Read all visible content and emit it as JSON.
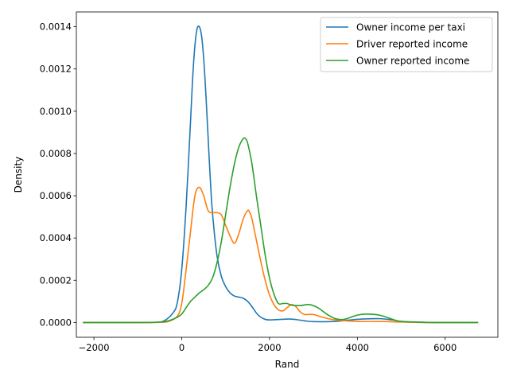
{
  "chart_data": {
    "type": "line",
    "title": "",
    "xlabel": "Rand",
    "ylabel": "Density",
    "xlim": [
      -2400,
      7200
    ],
    "ylim": [
      -7e-05,
      0.00147
    ],
    "xticks": [
      -2000,
      0,
      2000,
      4000,
      6000
    ],
    "xtick_labels": [
      "−2000",
      "0",
      "2000",
      "4000",
      "6000"
    ],
    "yticks": [
      0,
      0.0002,
      0.0004,
      0.0006,
      0.0008,
      0.001,
      0.0012,
      0.0014
    ],
    "ytick_labels": [
      "0.0000",
      "0.0002",
      "0.0004",
      "0.0006",
      "0.0008",
      "0.0010",
      "0.0012",
      "0.0014"
    ],
    "grid": false,
    "legend_position": "top-right",
    "series": [
      {
        "name": "Owner income per taxi",
        "color": "#1f77b4",
        "x": [
          -2250,
          -1000,
          -600,
          -400,
          -200,
          -100,
          0,
          100,
          200,
          250,
          300,
          350,
          400,
          450,
          500,
          550,
          600,
          650,
          700,
          800,
          900,
          1000,
          1100,
          1200,
          1300,
          1400,
          1500,
          1600,
          1700,
          1800,
          1900,
          2000,
          2200,
          2500,
          2800,
          3000,
          3500,
          4000,
          4500,
          4800,
          5000,
          5500,
          6000,
          6750
        ],
        "y": [
          0,
          0,
          1e-06,
          8e-06,
          4.5e-05,
          9.5e-05,
          0.00025,
          0.00055,
          0.00095,
          0.00116,
          0.00131,
          0.00139,
          0.0014,
          0.00136,
          0.00125,
          0.00108,
          0.00088,
          0.00068,
          0.00052,
          0.00032,
          0.00022,
          0.00017,
          0.00014,
          0.000125,
          0.00012,
          0.000115,
          0.0001,
          7.5e-05,
          4.5e-05,
          2.5e-05,
          1.5e-05,
          1.2e-05,
          1.4e-05,
          1.6e-05,
          8e-06,
          4e-06,
          5e-06,
          1.5e-05,
          1.8e-05,
          1.2e-05,
          5e-06,
          1e-06,
          0,
          0
        ]
      },
      {
        "name": "Driver reported income",
        "color": "#ff7f0e",
        "x": [
          -2250,
          -1000,
          -500,
          -300,
          -100,
          0,
          100,
          200,
          300,
          400,
          500,
          600,
          700,
          800,
          900,
          1000,
          1100,
          1200,
          1300,
          1400,
          1500,
          1550,
          1600,
          1700,
          1800,
          1900,
          2000,
          2100,
          2200,
          2300,
          2400,
          2500,
          2600,
          2700,
          2800,
          3000,
          3200,
          3500,
          4000,
          4500,
          5000,
          5500,
          6000,
          6750
        ],
        "y": [
          0,
          0,
          1e-06,
          5e-06,
          3e-05,
          9e-05,
          0.00025,
          0.00043,
          0.0006,
          0.00064,
          0.0006,
          0.00053,
          0.00052,
          0.00052,
          0.00051,
          0.00046,
          0.00041,
          0.000375,
          0.00042,
          0.00049,
          0.00053,
          0.00052,
          0.00049,
          0.00039,
          0.00029,
          0.0002,
          0.00013,
          8.5e-05,
          6e-05,
          5.5e-05,
          7e-05,
          8.5e-05,
          7.5e-05,
          5e-05,
          3.8e-05,
          3.8e-05,
          2.5e-05,
          1.2e-05,
          5e-06,
          5e-06,
          2e-06,
          0,
          0,
          0
        ]
      },
      {
        "name": "Owner reported income",
        "color": "#2ca02c",
        "x": [
          -2250,
          -1000,
          -500,
          -300,
          -100,
          0,
          100,
          200,
          300,
          400,
          500,
          600,
          700,
          800,
          900,
          1000,
          1100,
          1200,
          1300,
          1400,
          1450,
          1500,
          1600,
          1700,
          1800,
          1900,
          2000,
          2100,
          2200,
          2300,
          2400,
          2500,
          2700,
          2900,
          3100,
          3300,
          3500,
          3700,
          4000,
          4200,
          4500,
          4800,
          5000,
          5500,
          6000,
          6750
        ],
        "y": [
          0,
          0,
          2e-06,
          8e-06,
          2.5e-05,
          4e-05,
          7e-05,
          0.0001,
          0.00012,
          0.00014,
          0.000155,
          0.000175,
          0.00021,
          0.00028,
          0.00038,
          0.00051,
          0.00064,
          0.00075,
          0.00083,
          0.00087,
          0.00087,
          0.00085,
          0.00075,
          0.0006,
          0.00046,
          0.00032,
          0.00021,
          0.000135,
          9e-05,
          9e-05,
          9e-05,
          8.2e-05,
          8e-05,
          8.5e-05,
          7e-05,
          4e-05,
          1.8e-05,
          1.5e-05,
          3.5e-05,
          4e-05,
          3.5e-05,
          1.5e-05,
          5e-06,
          1e-06,
          0,
          0
        ]
      }
    ]
  }
}
